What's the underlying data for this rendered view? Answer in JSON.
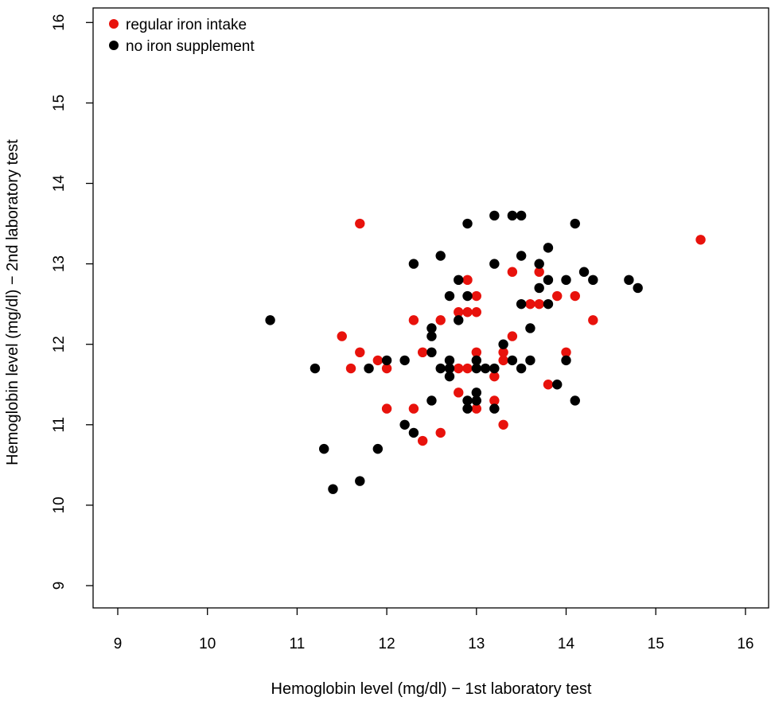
{
  "chart_data": {
    "type": "scatter",
    "title": "",
    "xlabel": "Hemoglobin level (mg/dl) − 1st laboratory test",
    "ylabel": "Hemoglobin level (mg/dl) − 2nd laboratory test",
    "xlim": [
      9,
      16
    ],
    "ylim": [
      9,
      16
    ],
    "xticks": [
      "9",
      "10",
      "11",
      "12",
      "13",
      "14",
      "15",
      "16"
    ],
    "yticks": [
      "9",
      "10",
      "11",
      "12",
      "13",
      "14",
      "15",
      "16"
    ],
    "grid": false,
    "legend_position": "top-left",
    "series": [
      {
        "name": "regular iron intake",
        "color": "#e8120c",
        "points": [
          [
            11.7,
            13.5
          ],
          [
            11.5,
            12.1
          ],
          [
            11.6,
            11.7
          ],
          [
            11.7,
            11.9
          ],
          [
            11.9,
            11.8
          ],
          [
            12.0,
            11.7
          ],
          [
            12.0,
            11.2
          ],
          [
            12.3,
            12.3
          ],
          [
            12.4,
            11.9
          ],
          [
            12.3,
            11.2
          ],
          [
            12.4,
            10.8
          ],
          [
            12.6,
            12.3
          ],
          [
            12.6,
            10.9
          ],
          [
            12.8,
            12.4
          ],
          [
            12.9,
            12.4
          ],
          [
            12.9,
            12.8
          ],
          [
            13.0,
            12.6
          ],
          [
            13.0,
            12.4
          ],
          [
            12.8,
            11.7
          ],
          [
            12.9,
            11.7
          ],
          [
            12.8,
            11.4
          ],
          [
            13.0,
            11.9
          ],
          [
            13.0,
            11.2
          ],
          [
            13.2,
            11.6
          ],
          [
            13.2,
            11.3
          ],
          [
            13.3,
            11.9
          ],
          [
            13.3,
            11.8
          ],
          [
            13.3,
            11.0
          ],
          [
            13.4,
            12.9
          ],
          [
            13.4,
            12.1
          ],
          [
            13.6,
            12.5
          ],
          [
            13.7,
            12.5
          ],
          [
            13.7,
            12.9
          ],
          [
            13.8,
            11.5
          ],
          [
            13.9,
            12.6
          ],
          [
            14.0,
            11.9
          ],
          [
            14.1,
            12.6
          ],
          [
            14.3,
            12.3
          ],
          [
            15.5,
            13.3
          ]
        ]
      },
      {
        "name": "no iron supplement",
        "color": "#000000",
        "points": [
          [
            10.7,
            12.3
          ],
          [
            11.2,
            11.7
          ],
          [
            11.3,
            10.7
          ],
          [
            11.4,
            10.2
          ],
          [
            11.7,
            10.3
          ],
          [
            11.8,
            11.7
          ],
          [
            11.9,
            10.7
          ],
          [
            12.0,
            11.8
          ],
          [
            12.2,
            11.8
          ],
          [
            12.2,
            11.0
          ],
          [
            12.3,
            13.0
          ],
          [
            12.3,
            10.9
          ],
          [
            12.5,
            12.2
          ],
          [
            12.5,
            12.1
          ],
          [
            12.5,
            11.9
          ],
          [
            12.5,
            11.3
          ],
          [
            12.6,
            13.1
          ],
          [
            12.6,
            11.7
          ],
          [
            12.7,
            12.6
          ],
          [
            12.7,
            11.8
          ],
          [
            12.7,
            11.7
          ],
          [
            12.7,
            11.6
          ],
          [
            12.8,
            12.8
          ],
          [
            12.8,
            12.3
          ],
          [
            12.9,
            13.5
          ],
          [
            12.9,
            12.6
          ],
          [
            12.9,
            11.3
          ],
          [
            12.9,
            11.2
          ],
          [
            13.0,
            11.8
          ],
          [
            13.0,
            11.7
          ],
          [
            13.0,
            11.4
          ],
          [
            13.0,
            11.3
          ],
          [
            13.1,
            11.7
          ],
          [
            13.2,
            13.6
          ],
          [
            13.2,
            13.0
          ],
          [
            13.2,
            11.7
          ],
          [
            13.2,
            11.2
          ],
          [
            13.3,
            12.0
          ],
          [
            13.4,
            13.6
          ],
          [
            13.4,
            11.8
          ],
          [
            13.5,
            13.6
          ],
          [
            13.5,
            13.1
          ],
          [
            13.5,
            12.5
          ],
          [
            13.5,
            11.7
          ],
          [
            13.6,
            12.2
          ],
          [
            13.6,
            11.8
          ],
          [
            13.7,
            13.0
          ],
          [
            13.7,
            12.7
          ],
          [
            13.8,
            13.2
          ],
          [
            13.8,
            12.8
          ],
          [
            13.8,
            12.5
          ],
          [
            13.9,
            11.5
          ],
          [
            14.0,
            12.8
          ],
          [
            14.0,
            11.8
          ],
          [
            14.1,
            13.5
          ],
          [
            14.1,
            11.3
          ],
          [
            14.2,
            12.9
          ],
          [
            14.3,
            12.8
          ],
          [
            14.7,
            12.8
          ],
          [
            14.8,
            12.7
          ]
        ]
      }
    ]
  }
}
